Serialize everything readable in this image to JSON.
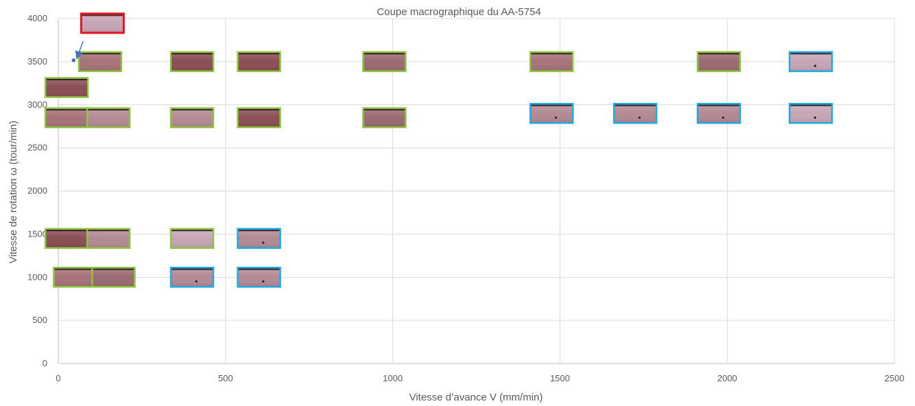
{
  "chart_data": {
    "type": "scatter",
    "title": "Coupe macrographique du AA-5754",
    "xlabel": "Vitesse d’avance V (mm/min)",
    "ylabel": "Vitesse de rotation ω (tour/min)",
    "xlim": [
      0,
      2500
    ],
    "ylim": [
      0,
      4000
    ],
    "xticks": [
      "0",
      "500",
      "1000",
      "1500",
      "2000",
      "2500"
    ],
    "yticks": [
      "0",
      "500",
      "1000",
      "1500",
      "2000",
      "2500",
      "3000",
      "3500",
      "4000"
    ],
    "grid": true,
    "marker_colors": {
      "green": "#8dc63f",
      "blue": "#1fa9e1",
      "red": "#e8141c"
    },
    "thumbnail_tints": [
      "#8a4e54",
      "#a67278",
      "#9b6a72",
      "#b38a93",
      "#c6a6b6"
    ],
    "points": [
      {
        "x": 50,
        "y": 3500,
        "border": "red",
        "tint": 4
      },
      {
        "x": 125,
        "y": 3500,
        "border": "green",
        "tint": 1
      },
      {
        "x": 400,
        "y": 3500,
        "border": "green",
        "tint": 0
      },
      {
        "x": 600,
        "y": 3500,
        "border": "green",
        "tint": 0
      },
      {
        "x": 975,
        "y": 3500,
        "border": "green",
        "tint": 2
      },
      {
        "x": 1475,
        "y": 3500,
        "border": "green",
        "tint": 1
      },
      {
        "x": 1975,
        "y": 3500,
        "border": "green",
        "tint": 2
      },
      {
        "x": 2250,
        "y": 3500,
        "border": "blue",
        "tint": 4
      },
      {
        "x": 25,
        "y": 3200,
        "border": "green",
        "tint": 0
      },
      {
        "x": 25,
        "y": 2850,
        "border": "green",
        "tint": 1
      },
      {
        "x": 150,
        "y": 2850,
        "border": "green",
        "tint": 3
      },
      {
        "x": 400,
        "y": 2850,
        "border": "green",
        "tint": 3
      },
      {
        "x": 600,
        "y": 2850,
        "border": "green",
        "tint": 0
      },
      {
        "x": 975,
        "y": 2850,
        "border": "green",
        "tint": 2
      },
      {
        "x": 1475,
        "y": 2900,
        "border": "blue",
        "tint": 3
      },
      {
        "x": 1725,
        "y": 2900,
        "border": "blue",
        "tint": 3
      },
      {
        "x": 1975,
        "y": 2900,
        "border": "blue",
        "tint": 3
      },
      {
        "x": 2250,
        "y": 2900,
        "border": "blue",
        "tint": 4
      },
      {
        "x": 25,
        "y": 1450,
        "border": "green",
        "tint": 0
      },
      {
        "x": 150,
        "y": 1450,
        "border": "green",
        "tint": 3
      },
      {
        "x": 400,
        "y": 1450,
        "border": "green",
        "tint": 4
      },
      {
        "x": 600,
        "y": 1450,
        "border": "blue",
        "tint": 3
      },
      {
        "x": 50,
        "y": 1000,
        "border": "green",
        "tint": 1
      },
      {
        "x": 165,
        "y": 1000,
        "border": "green",
        "tint": 2
      },
      {
        "x": 400,
        "y": 1000,
        "border": "blue",
        "tint": 3
      },
      {
        "x": 600,
        "y": 1000,
        "border": "blue",
        "tint": 3
      }
    ],
    "annotation": {
      "x": 50,
      "y": 3500
    }
  }
}
